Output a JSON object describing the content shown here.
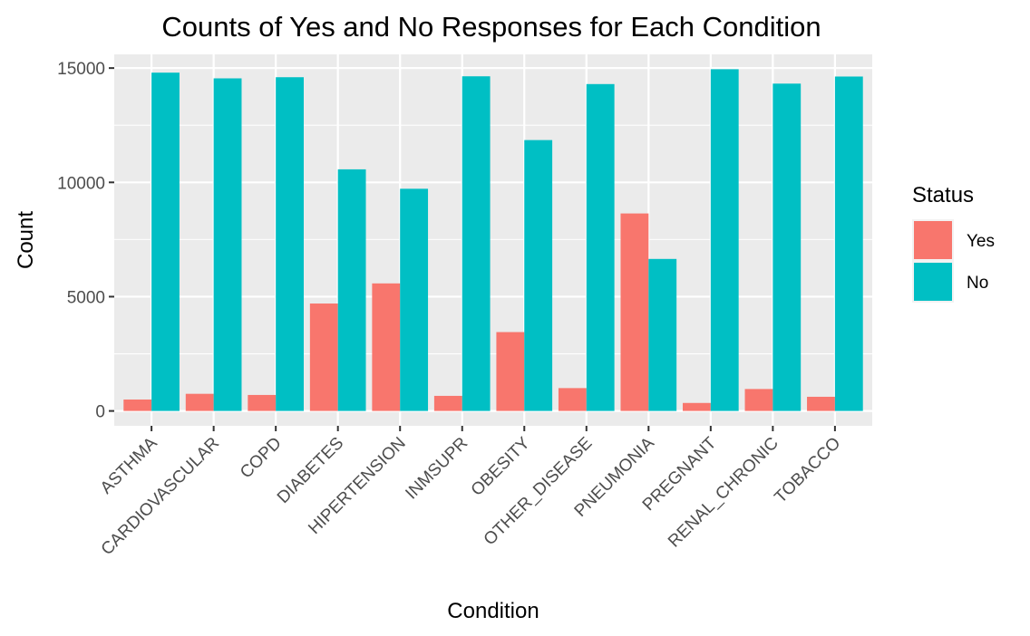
{
  "chart_data": {
    "type": "bar",
    "title": "Counts of Yes and No Responses for Each Condition",
    "xlabel": "Condition",
    "ylabel": "Count",
    "ylim": [
      -650,
      15600
    ],
    "yticks": [
      0,
      5000,
      10000,
      15000
    ],
    "ytick_labels": [
      "0",
      "5000",
      "10000",
      "15000"
    ],
    "categories": [
      "ASTHMA",
      "CARDIOVASCULAR",
      "COPD",
      "DIABETES",
      "HIPERTENSION",
      "INMSUPR",
      "OBESITY",
      "OTHER_DISEASE",
      "PNEUMONIA",
      "PREGNANT",
      "RENAL_CHRONIC",
      "TOBACCO"
    ],
    "legend": {
      "title": "Status",
      "position": "right"
    },
    "grid": true,
    "series": [
      {
        "name": "Yes",
        "color": "#F8766D",
        "values": [
          500,
          750,
          700,
          4700,
          5580,
          660,
          3450,
          1000,
          8640,
          350,
          960,
          620
        ]
      },
      {
        "name": "No",
        "color": "#00BFC4",
        "values": [
          14800,
          14550,
          14600,
          10570,
          9720,
          14640,
          11850,
          14300,
          6650,
          14950,
          14320,
          14630
        ]
      }
    ]
  }
}
